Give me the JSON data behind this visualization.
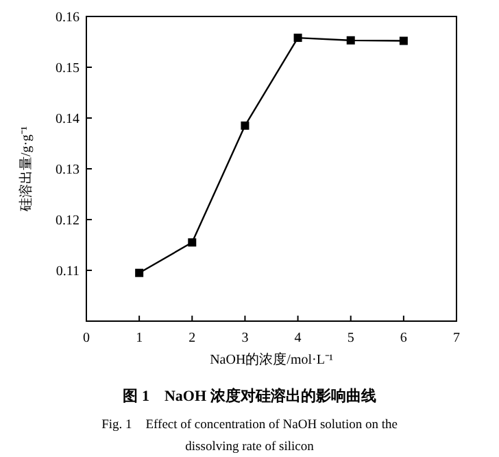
{
  "chart_data": {
    "type": "line",
    "x": [
      1,
      2,
      3,
      4,
      5,
      6
    ],
    "series": [
      {
        "color": "#000000",
        "values": [
          0.1095,
          0.1155,
          0.1385,
          0.1558,
          0.1553,
          0.1552
        ]
      }
    ],
    "xlim": [
      0,
      7
    ],
    "xticks": [
      0,
      1,
      2,
      3,
      4,
      5,
      6,
      7
    ],
    "ylim": [
      0.1,
      0.16
    ],
    "yticks": [
      0.11,
      0.12,
      0.13,
      0.14,
      0.15,
      0.16
    ],
    "xlabel": "NaOH的浓度/mol·L⁻¹",
    "ylabel": "硅溶出量/g·g⁻¹",
    "marker": "square",
    "line_style": "solid",
    "grid": false,
    "annotations": [
      "图 1　NaOH 浓度对硅溶出的影响曲线",
      "Fig. 1　Effect of concentration of NaOH solution on the",
      "dissolving rate of silicon"
    ]
  }
}
